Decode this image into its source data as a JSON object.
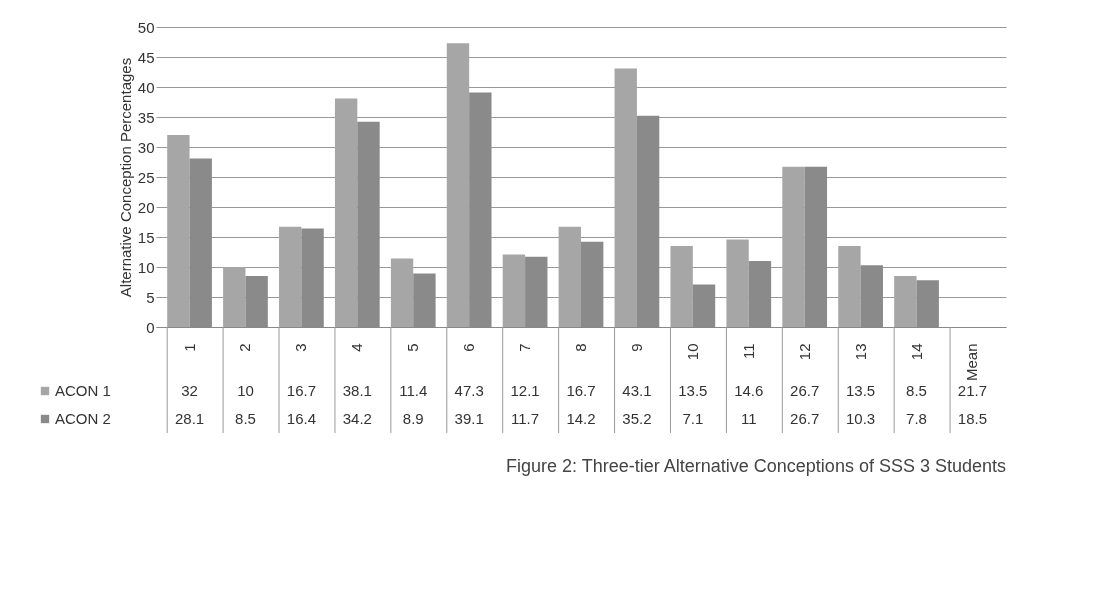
{
  "chart_data": {
    "type": "bar",
    "title": "Figure 2:  Three-tier Alternative Conceptions of SSS 3 Students",
    "ylabel": "Alternative Conception Percentages",
    "categories": [
      "1",
      "2",
      "3",
      "4",
      "5",
      "6",
      "7",
      "8",
      "9",
      "10",
      "11",
      "12",
      "13",
      "14",
      "Mean"
    ],
    "series": [
      {
        "name": "ACON 1",
        "color": "#a6a6a6",
        "values": [
          32,
          10,
          16.7,
          38.1,
          11.4,
          47.3,
          12.1,
          16.7,
          43.1,
          13.5,
          14.6,
          26.7,
          13.5,
          8.5,
          null
        ],
        "value_labels": [
          "32",
          "10",
          "16.7",
          "38.1",
          "11.4",
          "47.3",
          "12.1",
          "16.7",
          "43.1",
          "13.5",
          "14.6",
          "26.7",
          "13.5",
          "8.5",
          "21.7"
        ]
      },
      {
        "name": "ACON 2",
        "color": "#8a8a8a",
        "values": [
          28.1,
          8.5,
          16.4,
          34.2,
          8.9,
          39.1,
          11.7,
          14.2,
          35.2,
          7.1,
          11,
          26.7,
          10.3,
          7.8,
          null
        ],
        "value_labels": [
          "28.1",
          "8.5",
          "16.4",
          "34.2",
          "8.9",
          "39.1",
          "11.7",
          "14.2",
          "35.2",
          "7.1",
          "11",
          "26.7",
          "10.3",
          "7.8",
          "18.5"
        ]
      }
    ],
    "ylim": [
      0,
      50
    ],
    "yticks": [
      0,
      5,
      10,
      15,
      20,
      25,
      30,
      35,
      40,
      45,
      50
    ],
    "grid": "y",
    "legend": "bottom"
  }
}
